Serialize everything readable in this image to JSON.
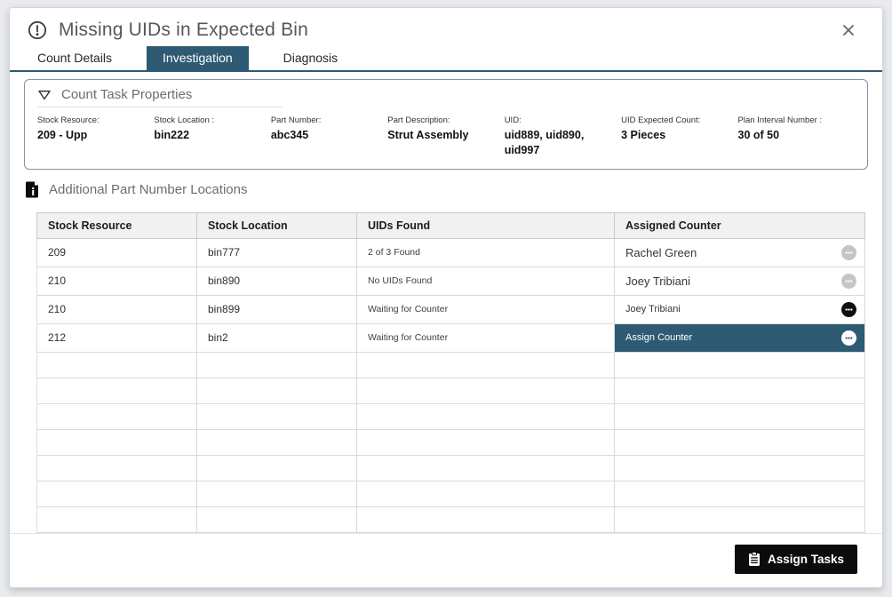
{
  "dialog": {
    "title": "Missing UIDs in Expected Bin"
  },
  "tabs": [
    {
      "label": "Count Details",
      "active": false
    },
    {
      "label": "Investigation",
      "active": true
    },
    {
      "label": "Diagnosis",
      "active": false
    }
  ],
  "count_task_properties": {
    "title": "Count Task Properties",
    "fields": [
      {
        "label": "Stock Resource:",
        "value": "209 - Upp"
      },
      {
        "label": "Stock Location :",
        "value": "bin222"
      },
      {
        "label": "Part Number:",
        "value": "abc345"
      },
      {
        "label": "Part Description:",
        "value": "Strut Assembly"
      },
      {
        "label": "UID:",
        "value": "uid889, uid890, uid997"
      },
      {
        "label": "UID Expected Count:",
        "value": "3 Pieces"
      },
      {
        "label": "Plan Interval Number :",
        "value": "30 of 50"
      }
    ]
  },
  "locations_section": {
    "title": "Additional Part Number Locations",
    "table": {
      "headers": [
        "Stock Resource",
        "Stock Location",
        "UIDs Found",
        "Assigned Counter"
      ],
      "rows": [
        {
          "stock_resource": "209",
          "stock_location": "bin777",
          "uids_found": "2 of 3 Found",
          "assigned_counter": "Rachel Green",
          "state": "assigned"
        },
        {
          "stock_resource": "210",
          "stock_location": "bin890",
          "uids_found": "No UIDs Found",
          "assigned_counter": "Joey Tribiani",
          "state": "assigned"
        },
        {
          "stock_resource": "210",
          "stock_location": "bin899",
          "uids_found": "Waiting for Counter",
          "assigned_counter": "Joey Tribiani",
          "state": "active"
        },
        {
          "stock_resource": "212",
          "stock_location": "bin2",
          "uids_found": "Waiting for Counter",
          "assigned_counter": "Assign Counter",
          "state": "selected"
        }
      ],
      "empty_row_count": 7
    }
  },
  "footer": {
    "assign_tasks_label": "Assign Tasks"
  },
  "colors": {
    "accent_teal": "#2e5a73",
    "button_black": "#0b0c0d",
    "panel_border": "#8096a8",
    "header_row_bg": "#f1f1f2"
  }
}
